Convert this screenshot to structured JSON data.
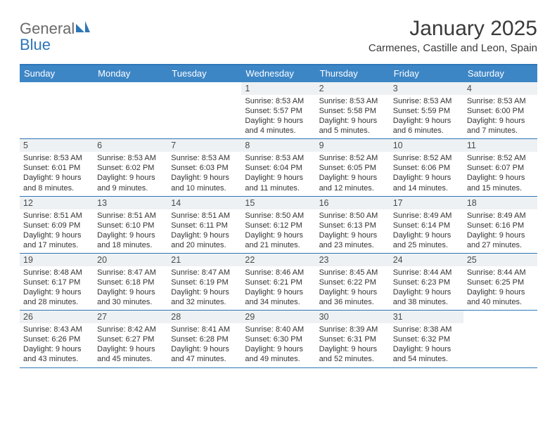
{
  "logo": {
    "word1": "General",
    "word2": "Blue"
  },
  "title": "January 2025",
  "location": "Carmenes, Castille and Leon, Spain",
  "colors": {
    "accent": "#3d86c6",
    "accent_dark": "#2d76b7",
    "daynum_bg": "#eef1f3",
    "text": "#333333",
    "logo_gray": "#6a6a6a"
  },
  "day_names": [
    "Sunday",
    "Monday",
    "Tuesday",
    "Wednesday",
    "Thursday",
    "Friday",
    "Saturday"
  ],
  "weeks": [
    [
      {
        "n": "",
        "lines": []
      },
      {
        "n": "",
        "lines": []
      },
      {
        "n": "",
        "lines": []
      },
      {
        "n": "1",
        "lines": [
          "Sunrise: 8:53 AM",
          "Sunset: 5:57 PM",
          "Daylight: 9 hours",
          "and 4 minutes."
        ]
      },
      {
        "n": "2",
        "lines": [
          "Sunrise: 8:53 AM",
          "Sunset: 5:58 PM",
          "Daylight: 9 hours",
          "and 5 minutes."
        ]
      },
      {
        "n": "3",
        "lines": [
          "Sunrise: 8:53 AM",
          "Sunset: 5:59 PM",
          "Daylight: 9 hours",
          "and 6 minutes."
        ]
      },
      {
        "n": "4",
        "lines": [
          "Sunrise: 8:53 AM",
          "Sunset: 6:00 PM",
          "Daylight: 9 hours",
          "and 7 minutes."
        ]
      }
    ],
    [
      {
        "n": "5",
        "lines": [
          "Sunrise: 8:53 AM",
          "Sunset: 6:01 PM",
          "Daylight: 9 hours",
          "and 8 minutes."
        ]
      },
      {
        "n": "6",
        "lines": [
          "Sunrise: 8:53 AM",
          "Sunset: 6:02 PM",
          "Daylight: 9 hours",
          "and 9 minutes."
        ]
      },
      {
        "n": "7",
        "lines": [
          "Sunrise: 8:53 AM",
          "Sunset: 6:03 PM",
          "Daylight: 9 hours",
          "and 10 minutes."
        ]
      },
      {
        "n": "8",
        "lines": [
          "Sunrise: 8:53 AM",
          "Sunset: 6:04 PM",
          "Daylight: 9 hours",
          "and 11 minutes."
        ]
      },
      {
        "n": "9",
        "lines": [
          "Sunrise: 8:52 AM",
          "Sunset: 6:05 PM",
          "Daylight: 9 hours",
          "and 12 minutes."
        ]
      },
      {
        "n": "10",
        "lines": [
          "Sunrise: 8:52 AM",
          "Sunset: 6:06 PM",
          "Daylight: 9 hours",
          "and 14 minutes."
        ]
      },
      {
        "n": "11",
        "lines": [
          "Sunrise: 8:52 AM",
          "Sunset: 6:07 PM",
          "Daylight: 9 hours",
          "and 15 minutes."
        ]
      }
    ],
    [
      {
        "n": "12",
        "lines": [
          "Sunrise: 8:51 AM",
          "Sunset: 6:09 PM",
          "Daylight: 9 hours",
          "and 17 minutes."
        ]
      },
      {
        "n": "13",
        "lines": [
          "Sunrise: 8:51 AM",
          "Sunset: 6:10 PM",
          "Daylight: 9 hours",
          "and 18 minutes."
        ]
      },
      {
        "n": "14",
        "lines": [
          "Sunrise: 8:51 AM",
          "Sunset: 6:11 PM",
          "Daylight: 9 hours",
          "and 20 minutes."
        ]
      },
      {
        "n": "15",
        "lines": [
          "Sunrise: 8:50 AM",
          "Sunset: 6:12 PM",
          "Daylight: 9 hours",
          "and 21 minutes."
        ]
      },
      {
        "n": "16",
        "lines": [
          "Sunrise: 8:50 AM",
          "Sunset: 6:13 PM",
          "Daylight: 9 hours",
          "and 23 minutes."
        ]
      },
      {
        "n": "17",
        "lines": [
          "Sunrise: 8:49 AM",
          "Sunset: 6:14 PM",
          "Daylight: 9 hours",
          "and 25 minutes."
        ]
      },
      {
        "n": "18",
        "lines": [
          "Sunrise: 8:49 AM",
          "Sunset: 6:16 PM",
          "Daylight: 9 hours",
          "and 27 minutes."
        ]
      }
    ],
    [
      {
        "n": "19",
        "lines": [
          "Sunrise: 8:48 AM",
          "Sunset: 6:17 PM",
          "Daylight: 9 hours",
          "and 28 minutes."
        ]
      },
      {
        "n": "20",
        "lines": [
          "Sunrise: 8:47 AM",
          "Sunset: 6:18 PM",
          "Daylight: 9 hours",
          "and 30 minutes."
        ]
      },
      {
        "n": "21",
        "lines": [
          "Sunrise: 8:47 AM",
          "Sunset: 6:19 PM",
          "Daylight: 9 hours",
          "and 32 minutes."
        ]
      },
      {
        "n": "22",
        "lines": [
          "Sunrise: 8:46 AM",
          "Sunset: 6:21 PM",
          "Daylight: 9 hours",
          "and 34 minutes."
        ]
      },
      {
        "n": "23",
        "lines": [
          "Sunrise: 8:45 AM",
          "Sunset: 6:22 PM",
          "Daylight: 9 hours",
          "and 36 minutes."
        ]
      },
      {
        "n": "24",
        "lines": [
          "Sunrise: 8:44 AM",
          "Sunset: 6:23 PM",
          "Daylight: 9 hours",
          "and 38 minutes."
        ]
      },
      {
        "n": "25",
        "lines": [
          "Sunrise: 8:44 AM",
          "Sunset: 6:25 PM",
          "Daylight: 9 hours",
          "and 40 minutes."
        ]
      }
    ],
    [
      {
        "n": "26",
        "lines": [
          "Sunrise: 8:43 AM",
          "Sunset: 6:26 PM",
          "Daylight: 9 hours",
          "and 43 minutes."
        ]
      },
      {
        "n": "27",
        "lines": [
          "Sunrise: 8:42 AM",
          "Sunset: 6:27 PM",
          "Daylight: 9 hours",
          "and 45 minutes."
        ]
      },
      {
        "n": "28",
        "lines": [
          "Sunrise: 8:41 AM",
          "Sunset: 6:28 PM",
          "Daylight: 9 hours",
          "and 47 minutes."
        ]
      },
      {
        "n": "29",
        "lines": [
          "Sunrise: 8:40 AM",
          "Sunset: 6:30 PM",
          "Daylight: 9 hours",
          "and 49 minutes."
        ]
      },
      {
        "n": "30",
        "lines": [
          "Sunrise: 8:39 AM",
          "Sunset: 6:31 PM",
          "Daylight: 9 hours",
          "and 52 minutes."
        ]
      },
      {
        "n": "31",
        "lines": [
          "Sunrise: 8:38 AM",
          "Sunset: 6:32 PM",
          "Daylight: 9 hours",
          "and 54 minutes."
        ]
      },
      {
        "n": "",
        "lines": []
      }
    ]
  ]
}
